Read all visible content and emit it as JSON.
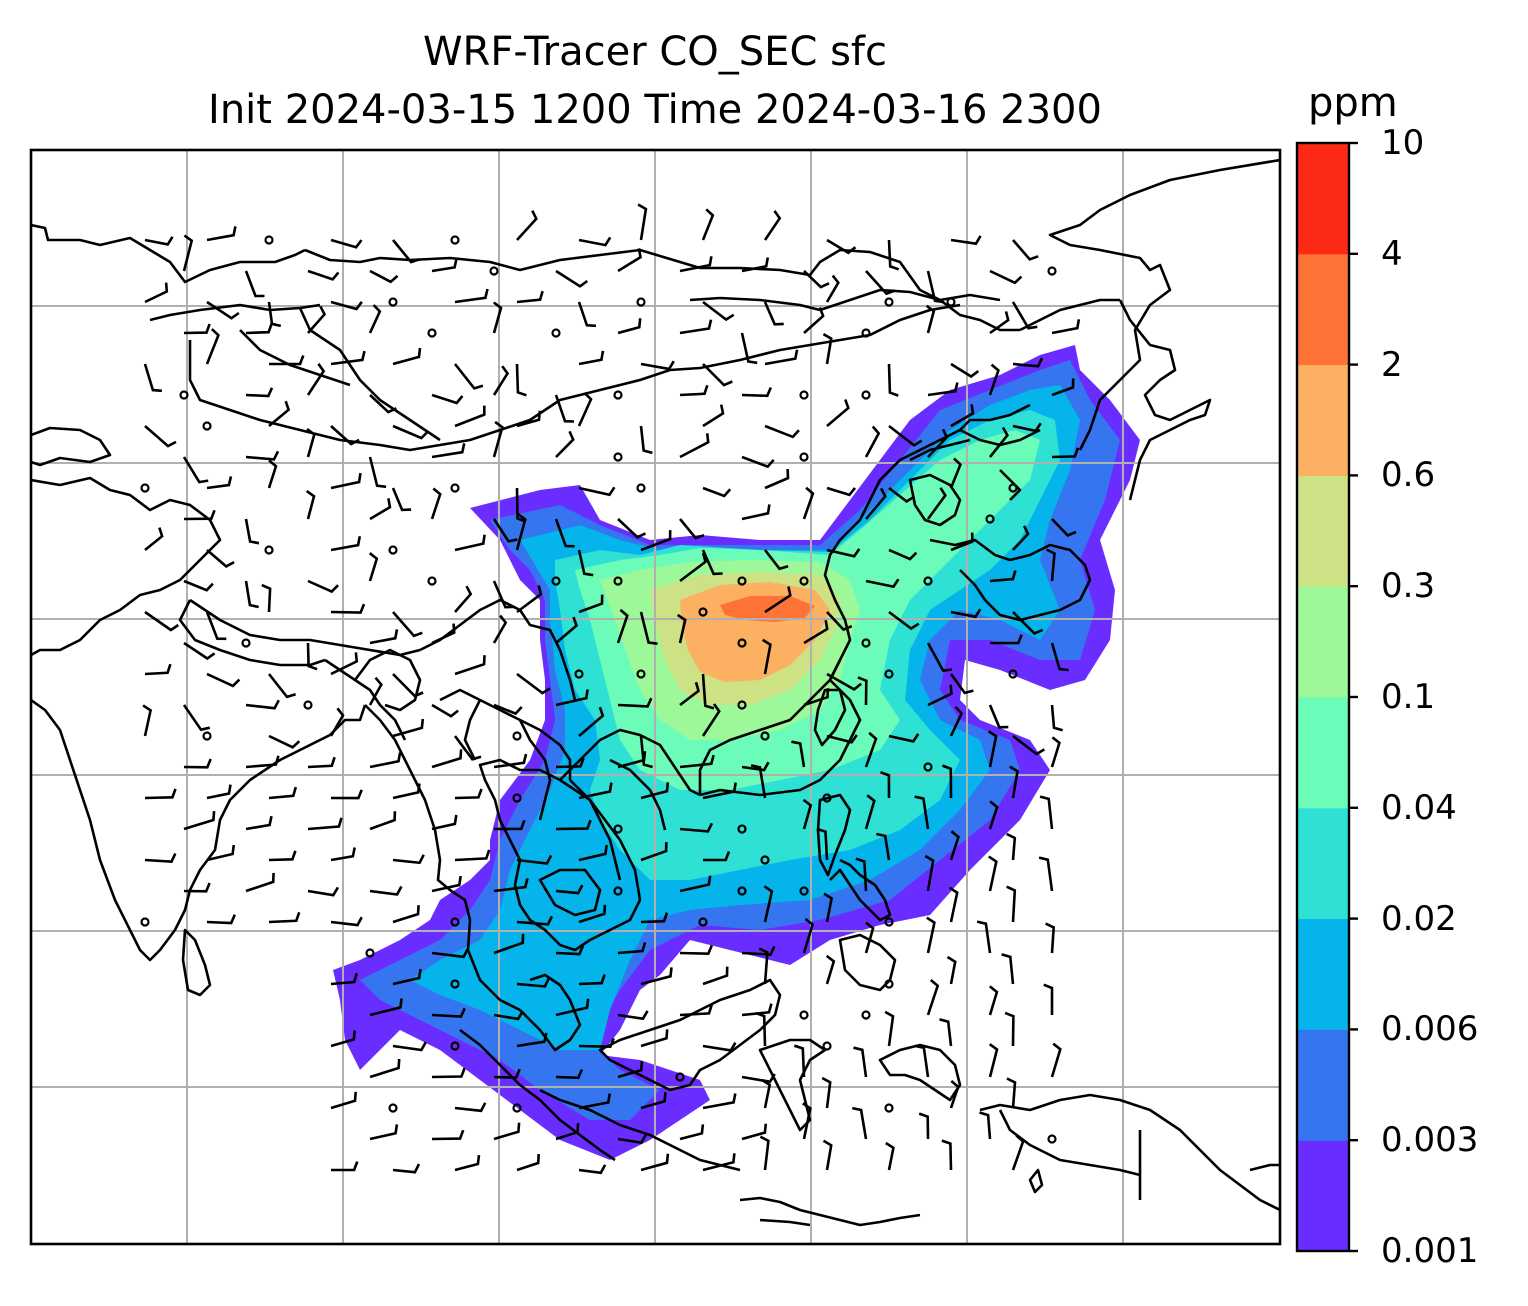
{
  "title": {
    "line1": "WRF-Tracer CO_SEC sfc",
    "line2": "Init 2024-03-15 1200 Time 2024-03-16 2300"
  },
  "colorbar": {
    "unit": "ppm",
    "levels": [
      "0.001",
      "0.003",
      "0.006",
      "0.02",
      "0.04",
      "0.1",
      "0.3",
      "0.6",
      "2",
      "4",
      "10"
    ],
    "colors": [
      "#6a2dff",
      "#3575f0",
      "#04b4ea",
      "#2fe0d4",
      "#6afcb8",
      "#9cf898",
      "#cde185",
      "#fcb062",
      "#ff7337",
      "#fd2a17"
    ]
  },
  "map": {
    "gridlines": true,
    "features": [
      "coastlines",
      "country-borders",
      "wind-barbs",
      "calm-wind-circles"
    ],
    "field": "CO_SEC surface tracer concentration"
  }
}
